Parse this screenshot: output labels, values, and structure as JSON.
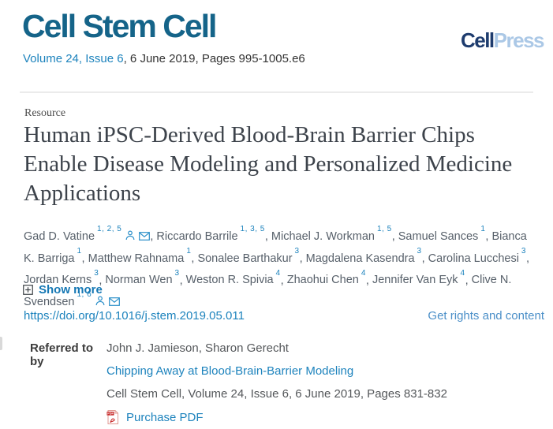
{
  "header": {
    "journal_title": "Cell Stem Cell",
    "issue_line": {
      "link": "Volume 24, Issue 6",
      "rest": ", 6 June 2019, Pages 995-1005.e6"
    },
    "publisher_logo": {
      "part1": "Cell",
      "part2": "Press"
    }
  },
  "article": {
    "type_label": "Resource",
    "title": "Human iPSC-Derived Blood-Brain Barrier Chips Enable Disease Modeling and Personalized Medicine Applications",
    "authors": [
      {
        "name": "Gad D. Vatine",
        "sup": "1, 2, 5",
        "icons": [
          "person",
          "envelope"
        ]
      },
      {
        "name": "Riccardo Barrile",
        "sup": "1, 3, 5",
        "icons": []
      },
      {
        "name": "Michael J. Workman",
        "sup": "1, 5",
        "icons": []
      },
      {
        "name": "Samuel Sances",
        "sup": "1",
        "icons": []
      },
      {
        "name": "Bianca K. Barriga",
        "sup": "1",
        "icons": []
      },
      {
        "name": "Matthew Rahnama",
        "sup": "1",
        "icons": []
      },
      {
        "name": "Sonalee Barthakur",
        "sup": "3",
        "icons": []
      },
      {
        "name": "Magdalena Kasendra",
        "sup": "3",
        "icons": []
      },
      {
        "name": "Carolina Lucchesi",
        "sup": "3",
        "icons": []
      },
      {
        "name": "Jordan Kerns",
        "sup": "3",
        "icons": []
      },
      {
        "name": "Norman Wen",
        "sup": "3",
        "icons": []
      },
      {
        "name": "Weston R. Spivia",
        "sup": "4",
        "icons": []
      },
      {
        "name": "Zhaohui Chen",
        "sup": "4",
        "icons": []
      },
      {
        "name": "Jennifer Van Eyk",
        "sup": "4",
        "icons": []
      },
      {
        "name": "Clive N. Svendsen",
        "sup": "1, 6",
        "icons": [
          "person",
          "envelope"
        ]
      }
    ],
    "show_more_label": "Show more",
    "doi": "https://doi.org/10.1016/j.stem.2019.05.011",
    "rights_link": "Get rights and content"
  },
  "referred": {
    "label": "Referred to by",
    "cited_authors": "John J. Jamieson, Sharon Gerecht",
    "article_title": "Chipping Away at Blood-Brain-Barrier Modeling",
    "source_line": "Cell Stem Cell, Volume 24, Issue 6, 6 June 2019, Pages 831-832",
    "purchase_label": "Purchase PDF",
    "pdf_icon_text": "PDF"
  },
  "colors": {
    "masthead": "#156489",
    "link_blue": "#1d83bd",
    "rights_blue": "#4b8fc8",
    "show_more_blue": "#1477b4",
    "logo_navy": "#1e3c6e",
    "logo_light_blue": "#abc8e6",
    "text_dark": "#333333",
    "title_gray": "#3d434b",
    "author_gray": "#57606a",
    "divider_gray": "#ebebeb",
    "pdf_red": "#c51f1f"
  }
}
